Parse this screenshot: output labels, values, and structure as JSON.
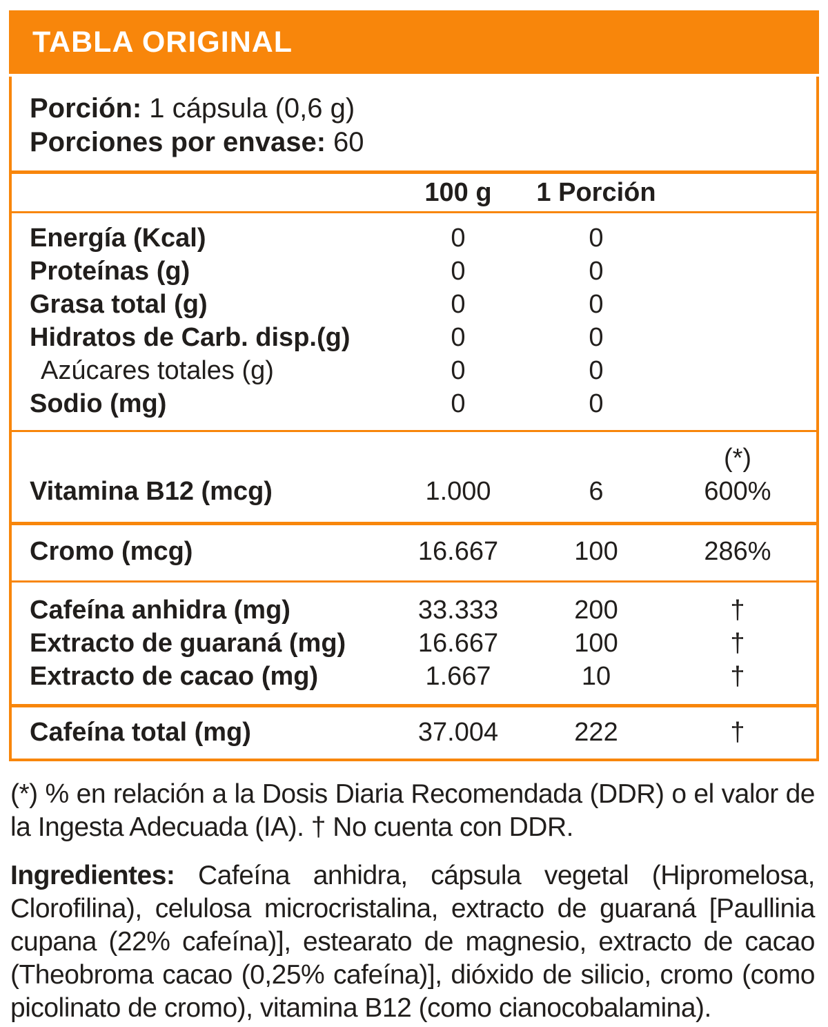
{
  "colors": {
    "accent_orange": "#f8860b",
    "text_dark": "#211e1c",
    "title_text": "#ffffff",
    "background": "#ffffff"
  },
  "header": {
    "title": "TABLA ORIGINAL"
  },
  "serving": {
    "portion_label": "Porción:",
    "portion_value": "1 cápsula (0,6 g)",
    "servings_label": "Porciones por envase:",
    "servings_value": "60"
  },
  "columns": {
    "per_100g": "100 g",
    "per_portion": "1 Porción",
    "ddr_note": "(*)"
  },
  "table": {
    "macro_rows": [
      {
        "label": "Energía (Kcal)",
        "per_100g": "0",
        "per_portion": "0"
      },
      {
        "label": "Proteínas (g)",
        "per_100g": "0",
        "per_portion": "0"
      },
      {
        "label": "Grasa total (g)",
        "per_100g": "0",
        "per_portion": "0"
      },
      {
        "label": "Hidratos de Carb. disp.(g)",
        "per_100g": "0",
        "per_portion": "0"
      },
      {
        "label": "Azúcares totales (g)",
        "per_100g": "0",
        "per_portion": "0"
      },
      {
        "label": "Sodio (mg)",
        "per_100g": "0",
        "per_portion": "0"
      }
    ],
    "vitamin_row": {
      "label": "Vitamina B12 (mcg)",
      "per_100g": "1.000",
      "per_portion": "6",
      "ddr": "600%"
    },
    "mineral_row": {
      "label": "Cromo (mcg)",
      "per_100g": "16.667",
      "per_portion": "100",
      "ddr": "286%"
    },
    "caffeine_rows": [
      {
        "label": "Cafeína anhidra (mg)",
        "per_100g": "33.333",
        "per_portion": "200",
        "ddr": "†"
      },
      {
        "label": "Extracto de guaraná (mg)",
        "per_100g": "16.667",
        "per_portion": "100",
        "ddr": "†"
      },
      {
        "label": "Extracto de cacao (mg)",
        "per_100g": "1.667",
        "per_portion": "10",
        "ddr": "†"
      }
    ],
    "total_row": {
      "label": "Cafeína total (mg)",
      "per_100g": "37.004",
      "per_portion": "222",
      "ddr": "†"
    }
  },
  "footnote": "(*) % en relación a la Dosis Diaria Recomendada (DDR) o el valor de la Ingesta Adecuada (IA). † No cuenta con DDR.",
  "ingredients": {
    "label": "Ingredientes:",
    "text": "Cafeína anhidra, cápsula vegetal (Hipromelosa, Clorofilina), celulosa microcristalina, extracto de guaraná [Paullinia cupana (22% cafeína)], estearato de magnesio, extracto de cacao (Theobroma cacao (0,25% cafeína)], dióxido de silicio, cromo (como picolinato de cromo), vitamina B12 (como cianocobalamina)."
  }
}
